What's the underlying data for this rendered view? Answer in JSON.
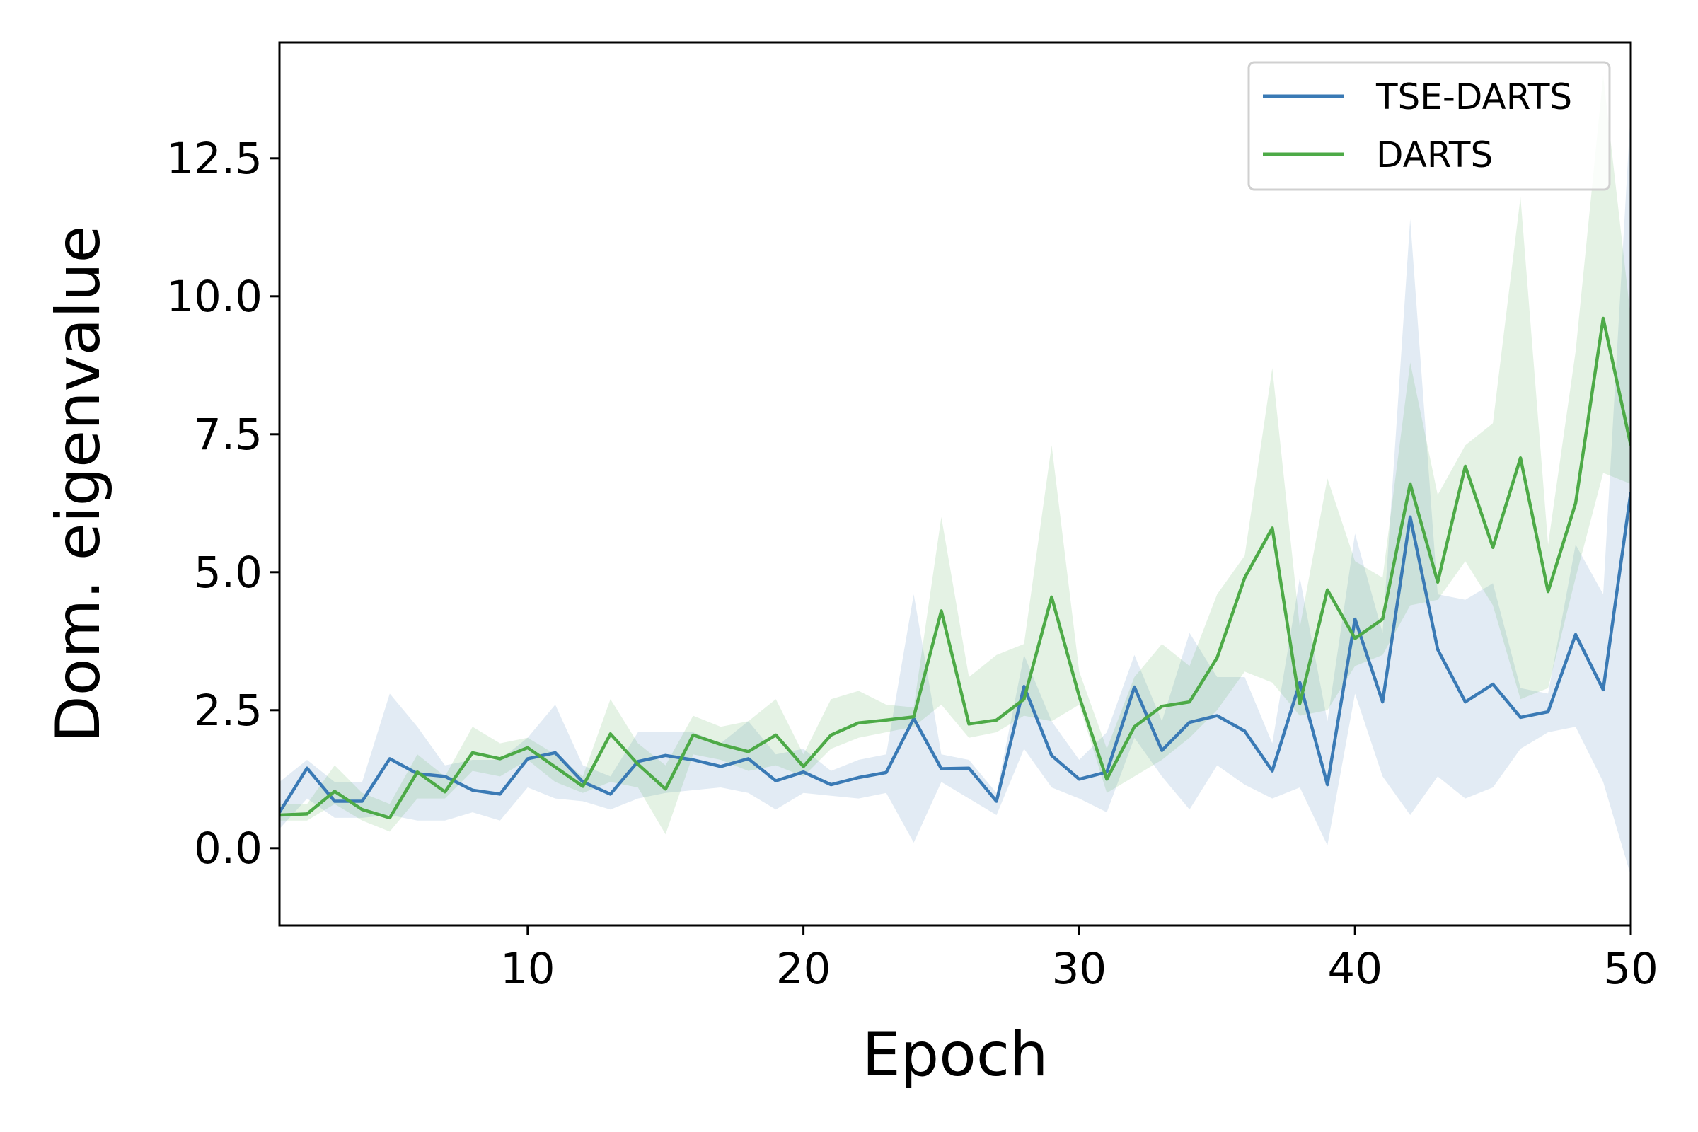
{
  "chart_data": {
    "type": "line",
    "title": "",
    "xlabel": "Epoch",
    "ylabel": "Dom. eigenvalue",
    "xlim": [
      1,
      50
    ],
    "ylim": [
      -1.4,
      14.6
    ],
    "xticks": [
      10,
      20,
      30,
      40,
      50
    ],
    "xtick_labels": [
      "10",
      "20",
      "30",
      "40",
      "50"
    ],
    "yticks": [
      0.0,
      2.5,
      5.0,
      7.5,
      10.0,
      12.5
    ],
    "ytick_labels": [
      "0.0",
      "2.5",
      "5.0",
      "7.5",
      "10.0",
      "12.5"
    ],
    "grid": false,
    "legend_position": "top-right",
    "x": [
      1,
      2,
      3,
      4,
      5,
      6,
      7,
      8,
      9,
      10,
      11,
      12,
      13,
      14,
      15,
      16,
      17,
      18,
      19,
      20,
      21,
      22,
      23,
      24,
      25,
      26,
      27,
      28,
      29,
      30,
      31,
      32,
      33,
      34,
      35,
      36,
      37,
      38,
      39,
      40,
      41,
      42,
      43,
      44,
      45,
      46,
      47,
      48,
      49,
      50
    ],
    "series": [
      {
        "name": "TSE-DARTS",
        "color": "#3a7ab5",
        "band_opacity": 0.15,
        "values": [
          0.65,
          1.45,
          0.85,
          0.85,
          1.62,
          1.35,
          1.3,
          1.05,
          0.98,
          1.62,
          1.73,
          1.2,
          0.98,
          1.57,
          1.68,
          1.6,
          1.48,
          1.62,
          1.22,
          1.38,
          1.15,
          1.28,
          1.37,
          2.35,
          1.44,
          1.45,
          0.85,
          2.93,
          1.68,
          1.25,
          1.38,
          2.92,
          1.77,
          2.28,
          2.4,
          2.12,
          1.4,
          3.0,
          1.15,
          4.15,
          2.65,
          6.0,
          3.6,
          2.65,
          2.97,
          2.37,
          2.47,
          3.87,
          2.87,
          6.45
        ],
        "lower": [
          0.35,
          0.9,
          0.55,
          0.55,
          0.6,
          0.5,
          0.5,
          0.65,
          0.5,
          1.1,
          0.9,
          0.85,
          0.7,
          0.9,
          1.0,
          1.05,
          1.1,
          1.0,
          0.7,
          1.0,
          0.95,
          0.9,
          1.0,
          0.1,
          1.2,
          0.9,
          0.6,
          1.8,
          1.1,
          0.9,
          0.65,
          2.0,
          1.3,
          0.7,
          1.5,
          1.15,
          0.9,
          1.1,
          0.05,
          2.8,
          1.3,
          0.6,
          1.3,
          0.9,
          1.1,
          1.8,
          2.1,
          2.2,
          1.2,
          -0.5
        ],
        "upper": [
          1.2,
          1.6,
          1.2,
          1.2,
          2.8,
          2.2,
          1.5,
          1.6,
          1.6,
          2.0,
          2.6,
          1.5,
          1.3,
          2.1,
          2.1,
          2.1,
          1.9,
          2.3,
          1.7,
          1.8,
          1.4,
          1.6,
          1.7,
          4.6,
          1.7,
          1.6,
          1.0,
          3.5,
          2.3,
          1.6,
          2.1,
          3.5,
          2.3,
          3.9,
          3.1,
          3.1,
          1.9,
          4.9,
          2.3,
          5.7,
          3.9,
          11.4,
          4.6,
          4.5,
          4.8,
          2.9,
          2.8,
          5.5,
          4.6,
          13.4
        ]
      },
      {
        "name": "DARTS",
        "color": "#4daa47",
        "band_opacity": 0.15,
        "values": [
          0.6,
          0.62,
          1.03,
          0.7,
          0.55,
          1.38,
          1.02,
          1.73,
          1.62,
          1.82,
          1.47,
          1.12,
          2.07,
          1.52,
          1.07,
          2.05,
          1.88,
          1.75,
          2.05,
          1.48,
          2.05,
          2.27,
          2.32,
          2.38,
          4.3,
          2.25,
          2.32,
          2.7,
          4.55,
          2.75,
          1.25,
          2.2,
          2.57,
          2.65,
          3.45,
          4.9,
          5.8,
          2.62,
          4.68,
          3.8,
          4.15,
          6.6,
          4.82,
          6.92,
          5.45,
          7.07,
          4.65,
          6.25,
          9.6,
          7.3
        ],
        "lower": [
          0.5,
          0.5,
          0.8,
          0.5,
          0.3,
          0.9,
          0.9,
          1.4,
          1.3,
          1.6,
          1.2,
          1.0,
          1.2,
          1.1,
          0.25,
          1.7,
          1.6,
          1.4,
          1.5,
          1.3,
          1.8,
          2.0,
          2.1,
          2.2,
          2.6,
          2.0,
          2.1,
          2.4,
          2.3,
          2.6,
          1.0,
          1.3,
          1.6,
          2.0,
          2.5,
          3.2,
          3.0,
          2.4,
          2.5,
          3.3,
          3.5,
          4.4,
          4.5,
          5.2,
          4.4,
          2.7,
          2.9,
          4.9,
          6.8,
          6.6
        ],
        "upper": [
          0.8,
          0.8,
          1.5,
          1.0,
          0.8,
          1.7,
          1.3,
          2.2,
          1.9,
          2.0,
          1.7,
          1.3,
          2.7,
          1.9,
          1.5,
          2.4,
          2.2,
          2.3,
          2.7,
          1.7,
          2.7,
          2.85,
          2.6,
          2.55,
          6.0,
          3.1,
          3.5,
          3.7,
          7.3,
          3.2,
          1.8,
          3.1,
          3.7,
          3.3,
          4.6,
          5.3,
          8.7,
          4.0,
          6.7,
          5.2,
          4.9,
          8.8,
          6.4,
          7.3,
          7.7,
          11.8,
          5.5,
          9.0,
          14.0,
          9.6
        ]
      }
    ]
  }
}
